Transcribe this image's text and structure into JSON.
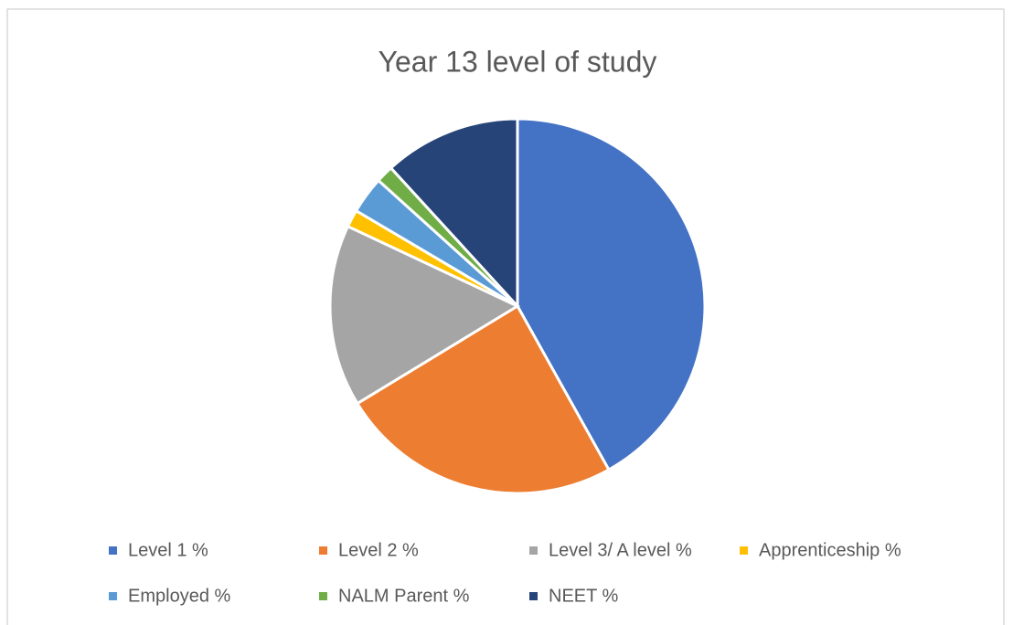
{
  "chart_data": {
    "type": "pie",
    "title": "Year 13 level of study",
    "categories": [
      "Level 1 %",
      "Level 2 %",
      "Level 3/ A level %",
      "Apprenticeship %",
      "Employed %",
      "NALM Parent %",
      "NEET %"
    ],
    "values": [
      41.9,
      24.4,
      15.7,
      1.5,
      3.2,
      1.5,
      11.8
    ],
    "colors": [
      "#4472c4",
      "#ed7d31",
      "#a5a5a5",
      "#ffc000",
      "#5b9bd5",
      "#70ad47",
      "#264478"
    ],
    "legend": "bottom"
  }
}
